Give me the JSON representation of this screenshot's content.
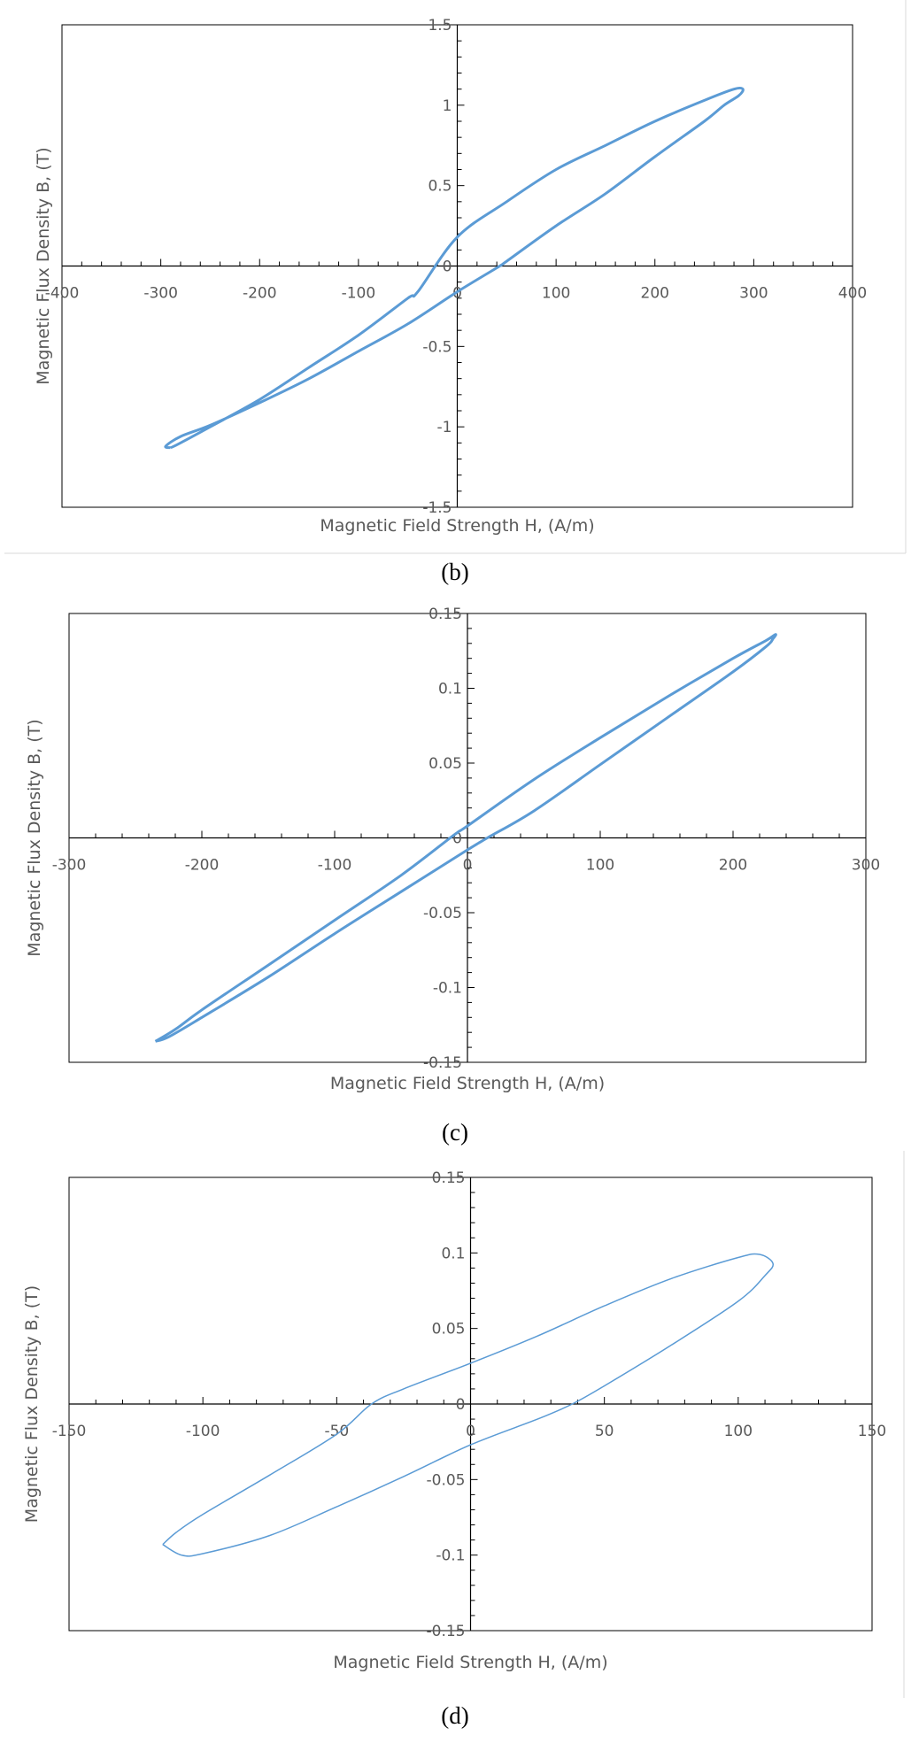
{
  "colors": {
    "curve": "#5b9bd5",
    "axis": "#000000",
    "frame": "#000000",
    "text": "#595959"
  },
  "chart_data": [
    {
      "type": "line",
      "caption": "(b)",
      "xlabel": "Magnetic Field Strength H, (A/m)",
      "ylabel": "Magnetic Flux Density B, (T)",
      "xlim": [
        -400,
        400
      ],
      "ylim": [
        -1.5,
        1.5
      ],
      "x_ticks": [
        -400,
        -300,
        -200,
        -100,
        0,
        100,
        200,
        300,
        400
      ],
      "x_tick_labels": [
        "-400",
        "-300",
        "-200",
        "-100",
        "0",
        "100",
        "200",
        "300",
        "400"
      ],
      "y_ticks": [
        -1.5,
        -1,
        -0.5,
        0,
        0.5,
        1,
        1.5
      ],
      "y_tick_labels": [
        "-1.5",
        "-1",
        "-0.5",
        "0",
        "0.5",
        "1",
        "1.5"
      ],
      "grid": false,
      "legend": "none",
      "series": [
        {
          "x": [
            -290,
            -280,
            -250,
            -200,
            -150,
            -100,
            -50,
            -40,
            0,
            50,
            100,
            150,
            200,
            250,
            280,
            289,
            285,
            270,
            250,
            200,
            150,
            100,
            50,
            43,
            0,
            -50,
            -100,
            -150,
            -200,
            -250,
            -280,
            -295,
            -290
          ],
          "y": [
            -1.13,
            -1.1,
            -1.0,
            -0.83,
            -0.63,
            -0.43,
            -0.2,
            -0.16,
            0.18,
            0.4,
            0.6,
            0.75,
            0.9,
            1.03,
            1.1,
            1.1,
            1.06,
            1.0,
            0.9,
            0.68,
            0.45,
            0.25,
            0.03,
            0.0,
            -0.16,
            -0.36,
            -0.53,
            -0.7,
            -0.85,
            -0.99,
            -1.06,
            -1.12,
            -1.13
          ],
          "line_width": 3
        }
      ]
    },
    {
      "type": "line",
      "caption": "(c)",
      "xlabel": "Magnetic Field Strength H, (A/m)",
      "ylabel": "Magnetic Flux Density B, (T)",
      "xlim": [
        -300,
        300
      ],
      "ylim": [
        -0.15,
        0.15
      ],
      "x_ticks": [
        -300,
        -200,
        -100,
        0,
        100,
        200,
        300
      ],
      "x_tick_labels": [
        "-300",
        "-200",
        "-100",
        "0",
        "100",
        "200",
        "300"
      ],
      "y_ticks": [
        -0.15,
        -0.1,
        -0.05,
        0,
        0.05,
        0.1,
        0.15
      ],
      "y_tick_labels": [
        "-0.15",
        "-0.1",
        "-0.05",
        "0",
        "0.05",
        "0.1",
        "0.15"
      ],
      "grid": false,
      "legend": "none",
      "series": [
        {
          "x": [
            -235,
            -220,
            -200,
            -150,
            -100,
            -50,
            -10,
            0,
            50,
            100,
            150,
            200,
            225,
            232,
            230,
            225,
            200,
            150,
            100,
            50,
            15,
            0,
            -50,
            -100,
            -150,
            -200,
            -225,
            -235
          ],
          "y": [
            -0.136,
            -0.128,
            -0.115,
            -0.085,
            -0.055,
            -0.025,
            0.002,
            0.008,
            0.039,
            0.067,
            0.094,
            0.12,
            0.132,
            0.136,
            0.133,
            0.128,
            0.111,
            0.08,
            0.049,
            0.018,
            0.0,
            -0.008,
            -0.036,
            -0.064,
            -0.093,
            -0.12,
            -0.133,
            -0.136
          ],
          "line_width": 3
        }
      ]
    },
    {
      "type": "line",
      "caption": "(d)",
      "xlabel": "Magnetic Field Strength H, (A/m)",
      "ylabel": "Magnetic Flux Density B, (T)",
      "xlim": [
        -150,
        150
      ],
      "ylim": [
        -0.15,
        0.15
      ],
      "x_ticks": [
        -150,
        -100,
        -50,
        0,
        50,
        100,
        150
      ],
      "x_tick_labels": [
        "-150",
        "-100",
        "-50",
        "0",
        "50",
        "100",
        "150"
      ],
      "y_ticks": [
        -0.15,
        -0.1,
        -0.05,
        0,
        0.05,
        0.1,
        0.15
      ],
      "y_tick_labels": [
        "-0.15",
        "-0.1",
        "-0.05",
        "0",
        "0.05",
        "0.1",
        "0.15"
      ],
      "grid": false,
      "legend": "none",
      "series": [
        {
          "x": [
            -115,
            -110,
            -100,
            -75,
            -50,
            -37,
            -25,
            0,
            25,
            50,
            75,
            100,
            108,
            113,
            110,
            100,
            75,
            50,
            38,
            25,
            0,
            -25,
            -50,
            -75,
            -100,
            -108,
            -115
          ],
          "y": [
            -0.093,
            -0.085,
            -0.073,
            -0.047,
            -0.02,
            0.0,
            0.01,
            0.027,
            0.045,
            0.065,
            0.083,
            0.097,
            0.099,
            0.093,
            0.085,
            0.068,
            0.039,
            0.012,
            0.0,
            -0.01,
            -0.027,
            -0.048,
            -0.068,
            -0.087,
            -0.099,
            -0.1,
            -0.093
          ],
          "line_width": 1.5
        }
      ]
    }
  ]
}
